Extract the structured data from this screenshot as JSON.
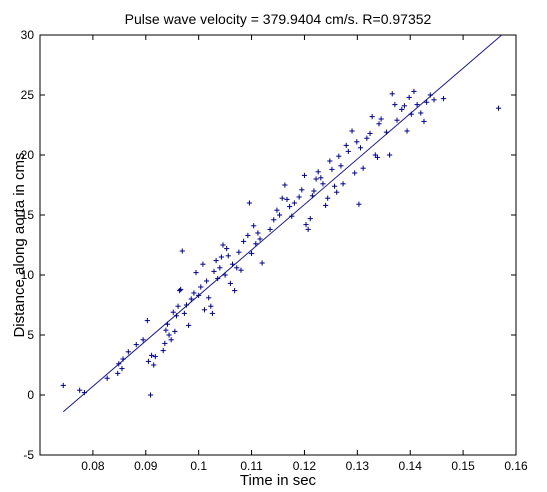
{
  "chart_data": {
    "type": "scatter",
    "title": "Pulse wave velocity = 379.9404 cm/s.    R=0.97352",
    "xlabel": "Time in sec",
    "ylabel": "Distance along aorta in cms",
    "xlim": [
      0.07,
      0.16
    ],
    "ylim": [
      -5,
      30
    ],
    "xticks": [
      0.08,
      0.09,
      0.1,
      0.11,
      0.12,
      0.13,
      0.14,
      0.15,
      0.16
    ],
    "xtick_labels": [
      "0.08",
      "0.09",
      "0.1",
      "0.11",
      "0.12",
      "0.13",
      "0.14",
      "0.15",
      "0.16"
    ],
    "yticks": [
      -5,
      0,
      5,
      10,
      15,
      20,
      25,
      30
    ],
    "ytick_labels": [
      "-5",
      "0",
      "5",
      "10",
      "15",
      "20",
      "25",
      "30"
    ],
    "grid": false,
    "fit_line": {
      "x": [
        0.0744,
        0.1573
      ],
      "y": [
        -1.4,
        30.0
      ]
    },
    "series": [
      {
        "marker": "+",
        "color": "#00008b",
        "points": [
          [
            0.0744,
            0.8
          ],
          [
            0.0775,
            0.4
          ],
          [
            0.0784,
            0.2
          ],
          [
            0.0827,
            1.4
          ],
          [
            0.0847,
            1.8
          ],
          [
            0.0855,
            2.2
          ],
          [
            0.0849,
            2.6
          ],
          [
            0.0857,
            3.0
          ],
          [
            0.0867,
            3.6
          ],
          [
            0.0882,
            4.2
          ],
          [
            0.0895,
            4.6
          ],
          [
            0.0903,
            6.2
          ],
          [
            0.0905,
            2.8
          ],
          [
            0.0911,
            3.3
          ],
          [
            0.0915,
            2.5
          ],
          [
            0.0918,
            3.2
          ],
          [
            0.0909,
            0.0
          ],
          [
            0.0933,
            3.7
          ],
          [
            0.0936,
            4.3
          ],
          [
            0.0938,
            5.4
          ],
          [
            0.0941,
            5.9
          ],
          [
            0.0944,
            5.0
          ],
          [
            0.0948,
            4.6
          ],
          [
            0.0952,
            6.9
          ],
          [
            0.0955,
            5.3
          ],
          [
            0.0958,
            6.6
          ],
          [
            0.0961,
            7.4
          ],
          [
            0.0964,
            8.7
          ],
          [
            0.0966,
            8.8
          ],
          [
            0.0969,
            12.0
          ],
          [
            0.0973,
            6.8
          ],
          [
            0.0977,
            7.5
          ],
          [
            0.0981,
            5.8
          ],
          [
            0.0986,
            8.0
          ],
          [
            0.0991,
            8.5
          ],
          [
            0.0995,
            10.2
          ],
          [
            0.1,
            8.3
          ],
          [
            0.1004,
            9.0
          ],
          [
            0.1008,
            10.9
          ],
          [
            0.1011,
            7.1
          ],
          [
            0.1015,
            9.5
          ],
          [
            0.1019,
            8.1
          ],
          [
            0.1023,
            7.4
          ],
          [
            0.1026,
            6.8
          ],
          [
            0.1029,
            10.3
          ],
          [
            0.1033,
            11.2
          ],
          [
            0.1036,
            9.7
          ],
          [
            0.104,
            10.6
          ],
          [
            0.1043,
            11.5
          ],
          [
            0.1046,
            12.5
          ],
          [
            0.105,
            10.0
          ],
          [
            0.1053,
            12.2
          ],
          [
            0.1056,
            11.6
          ],
          [
            0.106,
            9.3
          ],
          [
            0.1064,
            10.9
          ],
          [
            0.1068,
            8.7
          ],
          [
            0.1072,
            10.6
          ],
          [
            0.1076,
            11.9
          ],
          [
            0.108,
            10.4
          ],
          [
            0.1085,
            12.8
          ],
          [
            0.1093,
            13.3
          ],
          [
            0.1096,
            16.0
          ],
          [
            0.11,
            11.8
          ],
          [
            0.1104,
            14.1
          ],
          [
            0.1108,
            12.6
          ],
          [
            0.1112,
            13.5
          ],
          [
            0.1116,
            13.0
          ],
          [
            0.112,
            11.0
          ],
          [
            0.1135,
            13.8
          ],
          [
            0.1142,
            14.6
          ],
          [
            0.1148,
            15.4
          ],
          [
            0.1153,
            15.0
          ],
          [
            0.1158,
            16.4
          ],
          [
            0.1163,
            17.5
          ],
          [
            0.1167,
            16.3
          ],
          [
            0.1172,
            15.7
          ],
          [
            0.1176,
            14.9
          ],
          [
            0.1181,
            16.0
          ],
          [
            0.119,
            16.5
          ],
          [
            0.1195,
            17.1
          ],
          [
            0.12,
            18.3
          ],
          [
            0.1203,
            14.2
          ],
          [
            0.1207,
            13.8
          ],
          [
            0.1211,
            14.7
          ],
          [
            0.1215,
            16.6
          ],
          [
            0.1218,
            17.0
          ],
          [
            0.1222,
            18.0
          ],
          [
            0.1226,
            18.6
          ],
          [
            0.1231,
            18.1
          ],
          [
            0.1235,
            17.6
          ],
          [
            0.124,
            15.8
          ],
          [
            0.1244,
            16.4
          ],
          [
            0.1248,
            19.5
          ],
          [
            0.1252,
            18.8
          ],
          [
            0.1257,
            17.4
          ],
          [
            0.1261,
            16.9
          ],
          [
            0.1265,
            19.9
          ],
          [
            0.1269,
            19.1
          ],
          [
            0.1273,
            17.6
          ],
          [
            0.1279,
            20.8
          ],
          [
            0.1283,
            20.3
          ],
          [
            0.129,
            22.0
          ],
          [
            0.1295,
            18.5
          ],
          [
            0.1299,
            21.1
          ],
          [
            0.1303,
            15.9
          ],
          [
            0.1306,
            20.6
          ],
          [
            0.1311,
            18.9
          ],
          [
            0.1318,
            21.4
          ],
          [
            0.1324,
            21.8
          ],
          [
            0.1328,
            23.2
          ],
          [
            0.1334,
            20.0
          ],
          [
            0.1338,
            19.8
          ],
          [
            0.1341,
            22.6
          ],
          [
            0.1345,
            23.0
          ],
          [
            0.1355,
            21.9
          ],
          [
            0.1361,
            20.0
          ],
          [
            0.1366,
            25.1
          ],
          [
            0.1371,
            24.2
          ],
          [
            0.1375,
            22.9
          ],
          [
            0.1384,
            23.8
          ],
          [
            0.1389,
            24.1
          ],
          [
            0.1394,
            22.0
          ],
          [
            0.1398,
            24.8
          ],
          [
            0.1402,
            23.4
          ],
          [
            0.1407,
            25.3
          ],
          [
            0.1413,
            24.2
          ],
          [
            0.142,
            23.5
          ],
          [
            0.1426,
            22.8
          ],
          [
            0.1431,
            24.4
          ],
          [
            0.1438,
            25.0
          ],
          [
            0.1445,
            24.6
          ],
          [
            0.1463,
            24.7
          ],
          [
            0.1567,
            23.9
          ]
        ]
      }
    ]
  }
}
